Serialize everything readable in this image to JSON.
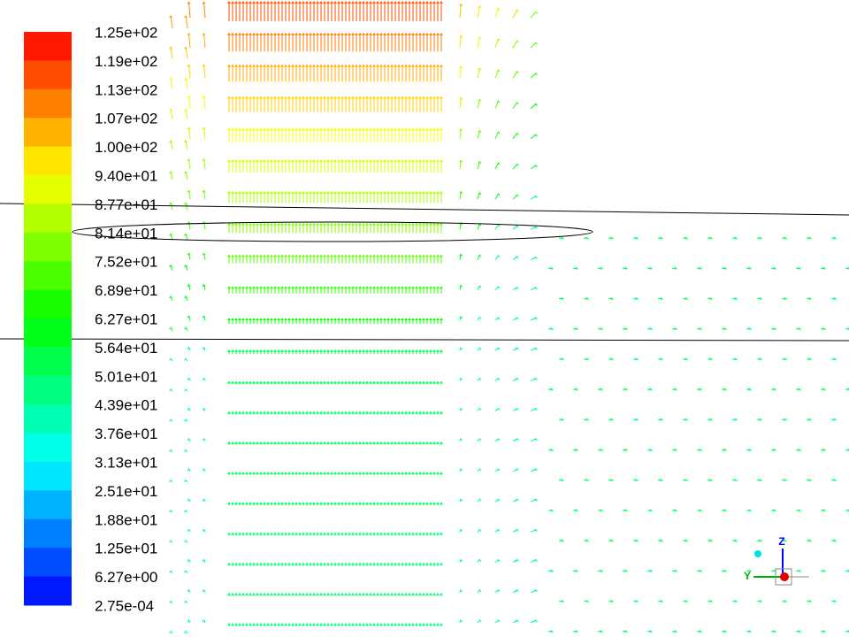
{
  "colorbar": {
    "labels": [
      "1.25e+02",
      "1.19e+02",
      "1.13e+02",
      "1.07e+02",
      "1.00e+02",
      "9.40e+01",
      "8.77e+01",
      "8.14e+01",
      "7.52e+01",
      "6.89e+01",
      "6.27e+01",
      "5.64e+01",
      "5.01e+01",
      "4.39e+01",
      "3.76e+01",
      "3.13e+01",
      "2.51e+01",
      "1.88e+01",
      "1.25e+01",
      "6.27e+00",
      "2.75e-04"
    ]
  },
  "triad": {
    "z_label": "Z",
    "y_label": "Y"
  }
}
